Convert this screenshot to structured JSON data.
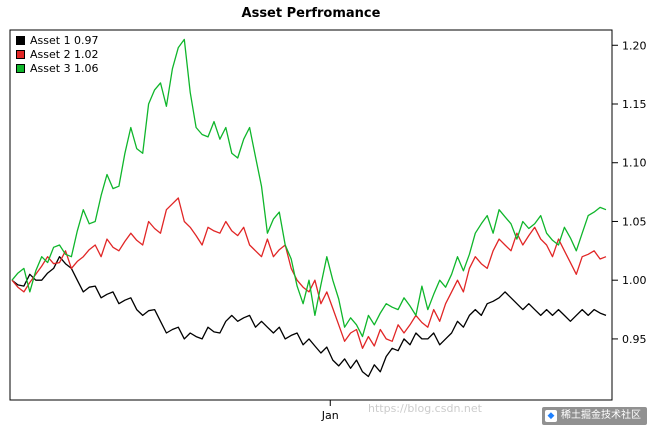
{
  "legend": [
    {
      "label": "Asset 1 0.97",
      "color": "#000000"
    },
    {
      "label": "Asset 2 1.02",
      "color": "#e12626"
    },
    {
      "label": "Asset 3 1.06",
      "color": "#0fb62b"
    }
  ],
  "watermark": {
    "url_text": "https://blog.csdn.net",
    "badge_text": "稀土掘金技术社区",
    "badge_logo": "juejin-gem"
  },
  "chart_data": {
    "type": "line",
    "title": "Asset Perfromance",
    "xlabel": "",
    "ylabel": "",
    "grid": false,
    "legend_position": "topleft",
    "axis_side": "right",
    "ylim": [
      0.898,
      1.213
    ],
    "yticks": [
      {
        "value": 0.95,
        "label": "0.95"
      },
      {
        "value": 1.0,
        "label": "1.00"
      },
      {
        "value": 1.05,
        "label": "1.05"
      },
      {
        "value": 1.1,
        "label": "1.10"
      },
      {
        "value": 1.15,
        "label": "1.15"
      },
      {
        "value": 1.2,
        "label": "1.20"
      }
    ],
    "xticks": [
      {
        "label": "Jan",
        "frac": 0.532
      }
    ],
    "series": [
      {
        "name": "Asset 1",
        "final_value": 0.97,
        "color": "#000000",
        "values": [
          1.0,
          0.996,
          0.995,
          1.005,
          1.0,
          1.0,
          1.006,
          1.01,
          1.02,
          1.014,
          1.01,
          1.0,
          0.99,
          0.994,
          0.995,
          0.985,
          0.988,
          0.99,
          0.98,
          0.983,
          0.985,
          0.975,
          0.97,
          0.974,
          0.975,
          0.965,
          0.955,
          0.958,
          0.96,
          0.95,
          0.955,
          0.952,
          0.95,
          0.96,
          0.956,
          0.955,
          0.965,
          0.97,
          0.965,
          0.968,
          0.97,
          0.96,
          0.965,
          0.96,
          0.955,
          0.96,
          0.95,
          0.953,
          0.955,
          0.945,
          0.95,
          0.944,
          0.938,
          0.943,
          0.932,
          0.927,
          0.933,
          0.925,
          0.932,
          0.922,
          0.918,
          0.928,
          0.922,
          0.935,
          0.942,
          0.94,
          0.95,
          0.945,
          0.955,
          0.95,
          0.95,
          0.955,
          0.945,
          0.95,
          0.955,
          0.965,
          0.96,
          0.97,
          0.975,
          0.97,
          0.98,
          0.982,
          0.985,
          0.99,
          0.985,
          0.98,
          0.975,
          0.98,
          0.975,
          0.97,
          0.975,
          0.97,
          0.975,
          0.97,
          0.965,
          0.97,
          0.975,
          0.97,
          0.975,
          0.972,
          0.97
        ]
      },
      {
        "name": "Asset 2",
        "final_value": 1.02,
        "color": "#e12626",
        "values": [
          1.0,
          0.994,
          0.99,
          0.998,
          1.005,
          1.012,
          1.02,
          1.014,
          1.015,
          1.025,
          1.01,
          1.016,
          1.02,
          1.026,
          1.03,
          1.02,
          1.035,
          1.028,
          1.025,
          1.033,
          1.04,
          1.034,
          1.03,
          1.05,
          1.044,
          1.04,
          1.06,
          1.065,
          1.07,
          1.05,
          1.045,
          1.038,
          1.03,
          1.045,
          1.042,
          1.04,
          1.05,
          1.042,
          1.038,
          1.045,
          1.03,
          1.025,
          1.02,
          1.035,
          1.02,
          1.026,
          1.03,
          1.01,
          1.0,
          0.994,
          0.99,
          1.0,
          0.98,
          0.99,
          0.976,
          0.962,
          0.948,
          0.955,
          0.958,
          0.942,
          0.952,
          0.944,
          0.958,
          0.95,
          0.948,
          0.962,
          0.955,
          0.962,
          0.97,
          0.964,
          0.96,
          0.975,
          0.965,
          0.98,
          0.99,
          1.0,
          0.99,
          1.01,
          1.02,
          1.014,
          1.01,
          1.025,
          1.035,
          1.03,
          1.025,
          1.04,
          1.03,
          1.038,
          1.045,
          1.035,
          1.03,
          1.02,
          1.035,
          1.025,
          1.015,
          1.005,
          1.02,
          1.022,
          1.025,
          1.018,
          1.02
        ]
      },
      {
        "name": "Asset 3",
        "final_value": 1.06,
        "color": "#0fb62b",
        "values": [
          1.0,
          1.006,
          1.01,
          0.99,
          1.008,
          1.02,
          1.015,
          1.028,
          1.03,
          1.022,
          1.02,
          1.042,
          1.06,
          1.048,
          1.05,
          1.072,
          1.09,
          1.078,
          1.08,
          1.108,
          1.13,
          1.112,
          1.108,
          1.15,
          1.162,
          1.168,
          1.148,
          1.18,
          1.198,
          1.205,
          1.16,
          1.13,
          1.124,
          1.122,
          1.135,
          1.12,
          1.13,
          1.108,
          1.104,
          1.12,
          1.13,
          1.105,
          1.08,
          1.04,
          1.052,
          1.058,
          1.03,
          1.018,
          0.995,
          0.98,
          1.0,
          0.97,
          0.996,
          1.02,
          1.0,
          0.984,
          0.96,
          0.968,
          0.962,
          0.952,
          0.97,
          0.962,
          0.972,
          0.98,
          0.977,
          0.975,
          0.985,
          0.978,
          0.97,
          0.995,
          0.975,
          0.988,
          1.0,
          0.994,
          1.005,
          1.02,
          1.008,
          1.022,
          1.04,
          1.048,
          1.055,
          1.04,
          1.06,
          1.054,
          1.048,
          1.035,
          1.05,
          1.044,
          1.048,
          1.055,
          1.04,
          1.034,
          1.03,
          1.045,
          1.036,
          1.025,
          1.04,
          1.055,
          1.058,
          1.062,
          1.06
        ]
      }
    ]
  }
}
